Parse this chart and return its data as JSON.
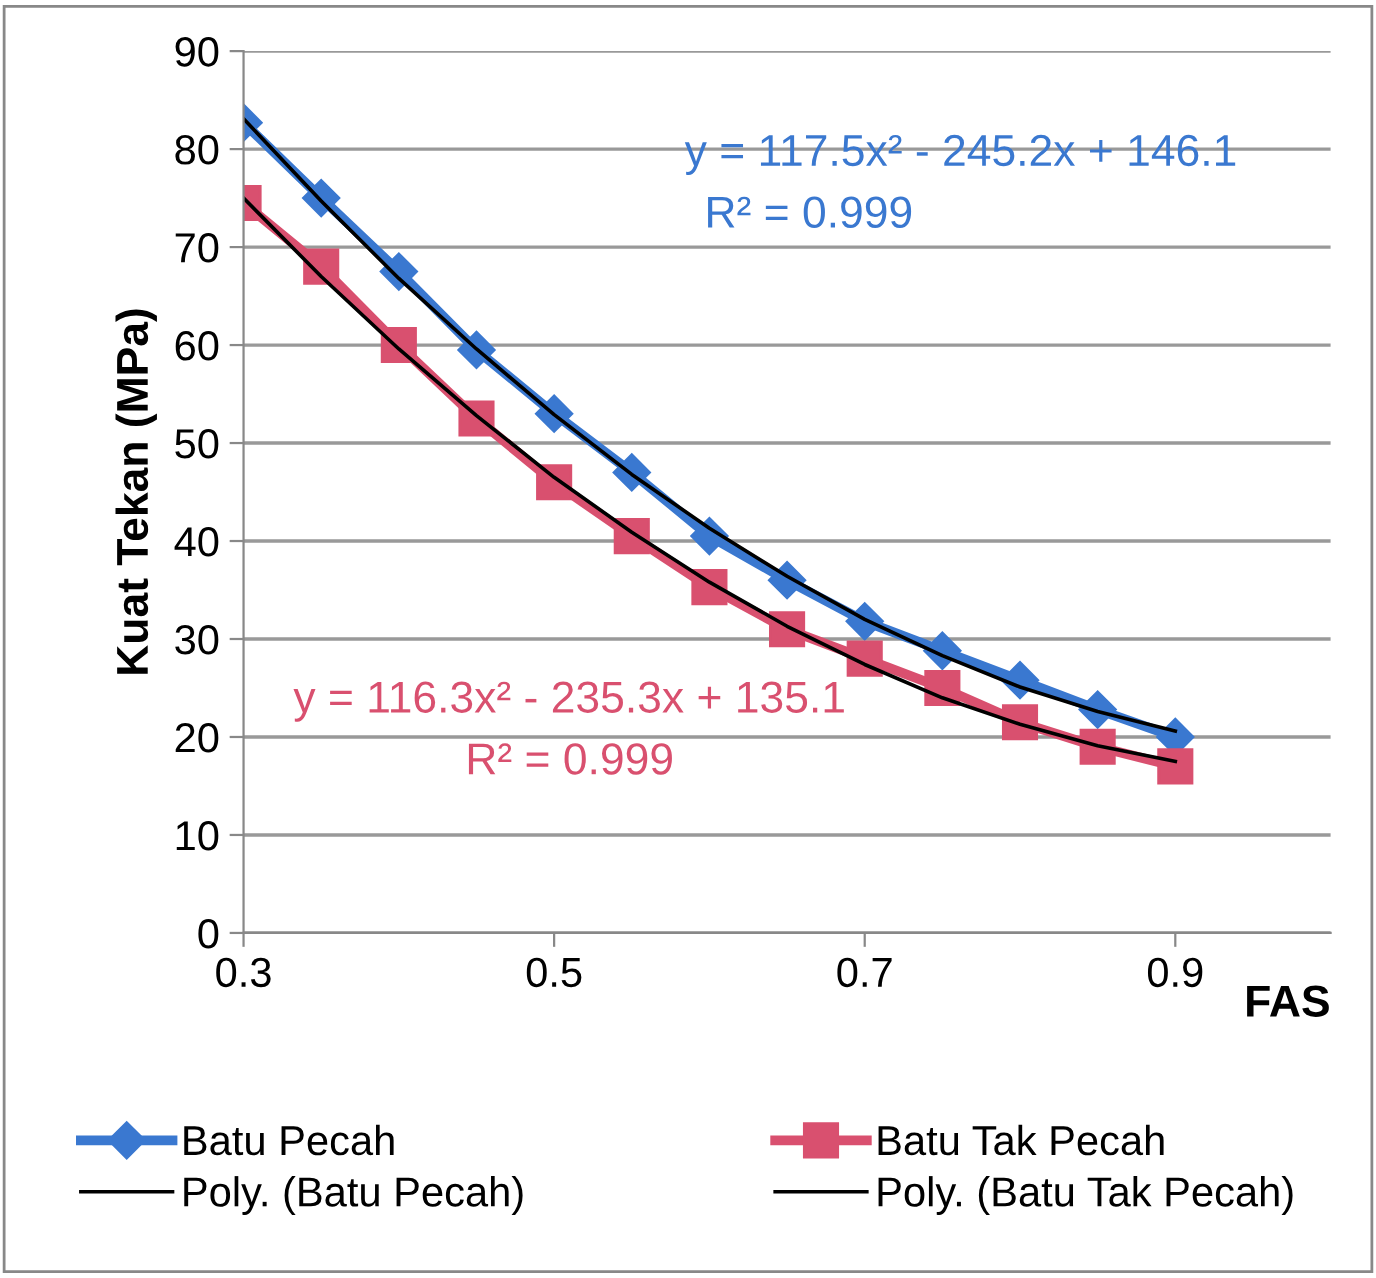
{
  "chart_data": {
    "type": "line",
    "xlabel": "FAS",
    "ylabel": "Kuat Tekan (MPa)",
    "x": [
      0.3,
      0.35,
      0.4,
      0.45,
      0.5,
      0.55,
      0.6,
      0.65,
      0.7,
      0.75,
      0.8,
      0.85,
      0.9
    ],
    "series": [
      {
        "name": "Batu Pecah",
        "color": "#3a78d0",
        "marker": "diamond",
        "values": [
          82.7,
          75,
          67.5,
          59.5,
          53,
          47,
          40.5,
          36,
          31.8,
          28.8,
          25.8,
          22.8,
          20
        ]
      },
      {
        "name": "Batu Tak Pecah",
        "color": "#d9506f",
        "marker": "square",
        "values": [
          74.5,
          68,
          60,
          52.5,
          46,
          40.5,
          35.3,
          31,
          28,
          25,
          21.5,
          19,
          17
        ]
      },
      {
        "name": "Poly. (Batu Pecah)",
        "color": "#000000",
        "marker": "none",
        "x": [
          0.3,
          0.35,
          0.4,
          0.45,
          0.5,
          0.55,
          0.6,
          0.65,
          0.7,
          0.75,
          0.8,
          0.85,
          0.9
        ],
        "values": [
          83.1,
          74.7,
          66.8,
          59.6,
          52.9,
          46.8,
          41.3,
          36.4,
          32.0,
          28.3,
          25.1,
          22.6,
          20.6
        ]
      },
      {
        "name": "Poly. (Batu Tak Pecah)",
        "color": "#000000",
        "marker": "none",
        "x": [
          0.3,
          0.35,
          0.4,
          0.45,
          0.5,
          0.55,
          0.6,
          0.65,
          0.7,
          0.75,
          0.8,
          0.85,
          0.9
        ],
        "values": [
          75.0,
          67.0,
          59.6,
          52.8,
          46.5,
          40.9,
          35.8,
          31.3,
          27.4,
          24.0,
          21.3,
          19.1,
          17.5
        ]
      }
    ],
    "annotations": [
      "y = 117.5x² - 245.2x + 146.1",
      "R² = 0.999",
      "y = 116.3x² - 235.3x + 135.1",
      "R² = 0.999"
    ],
    "xlim": [
      0.3,
      1.0
    ],
    "xticks": [
      0.3,
      0.5,
      0.7,
      0.9
    ],
    "ylim": [
      0,
      90
    ],
    "yticks": [
      0,
      10,
      20,
      30,
      40,
      50,
      60,
      70,
      80,
      90
    ],
    "grid": "y",
    "legend": "bottom",
    "line_style": "solid"
  }
}
